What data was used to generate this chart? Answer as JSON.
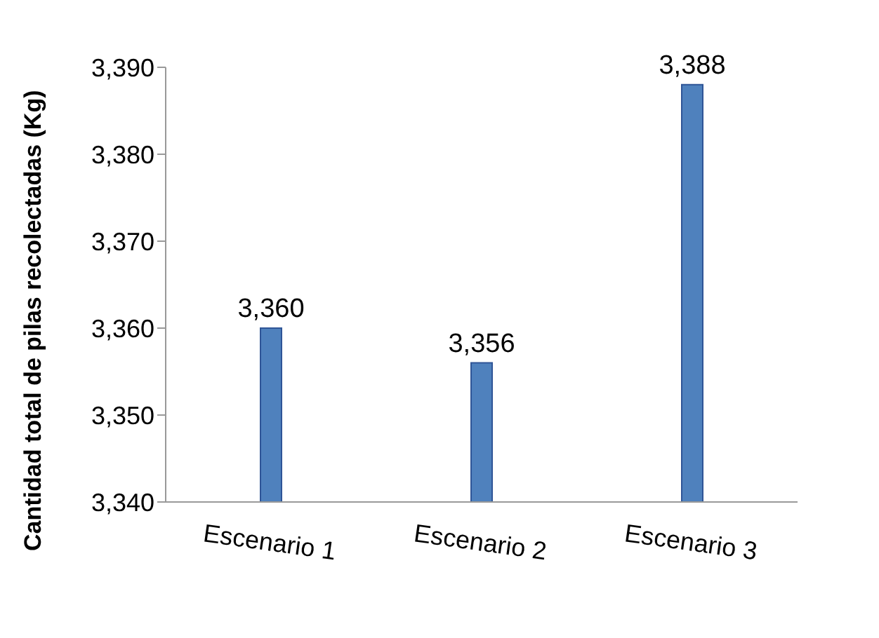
{
  "chart_data": {
    "type": "bar",
    "ylabel": "Cantidad total de pilas recolectadas (Kg)",
    "categories": [
      "Escenario 1",
      "Escenario 2",
      "Escenario 3"
    ],
    "values": [
      3360,
      3356,
      3388
    ],
    "value_labels": [
      "3,360",
      "3,356",
      "3,388"
    ],
    "color": "#4f81bd",
    "ylim": [
      3340,
      3390
    ],
    "yticks": [
      {
        "value": 3340,
        "label": "3,340"
      },
      {
        "value": 3350,
        "label": "3,350"
      },
      {
        "value": 3360,
        "label": "3,360"
      },
      {
        "value": 3370,
        "label": "3,370"
      },
      {
        "value": 3380,
        "label": "3,380"
      },
      {
        "value": 3390,
        "label": "3,390"
      }
    ],
    "grid": false,
    "legend": false
  }
}
